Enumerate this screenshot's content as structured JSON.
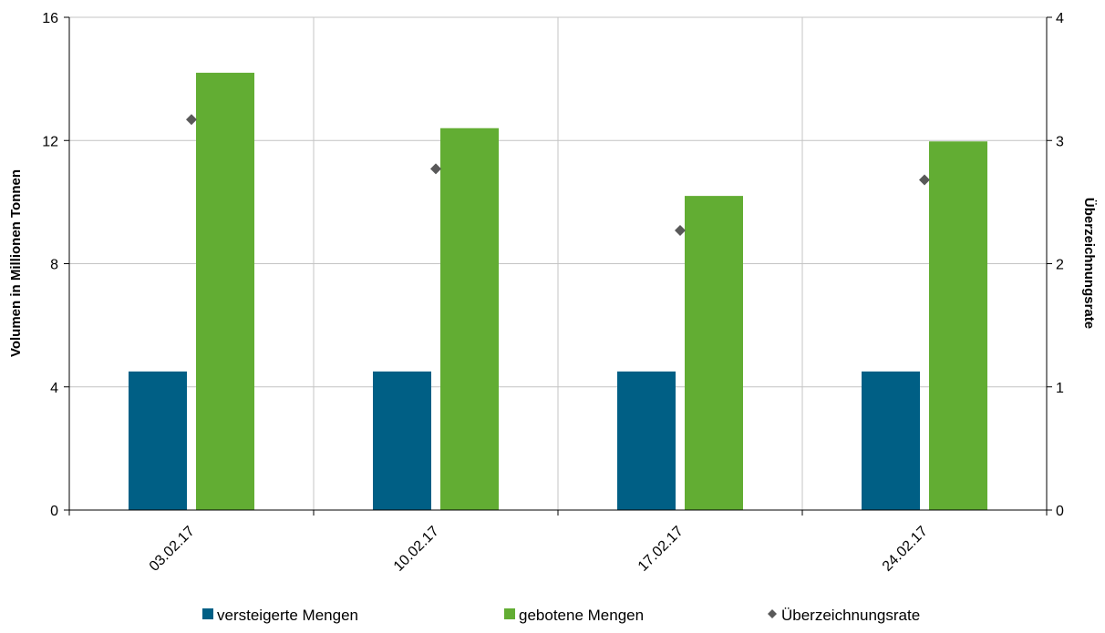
{
  "chart_data": {
    "type": "bar",
    "categories": [
      "03.02.17",
      "10.02.17",
      "17.02.17",
      "24.02.17"
    ],
    "series": [
      {
        "name": "versteigerte Mengen",
        "type": "bar",
        "axis": "left",
        "color": "#005f85",
        "values": [
          4.5,
          4.5,
          4.5,
          4.5
        ]
      },
      {
        "name": "gebotene Mengen",
        "type": "bar",
        "axis": "left",
        "color": "#62ad33",
        "values": [
          14.2,
          12.4,
          10.2,
          11.97
        ]
      },
      {
        "name": "Überzeichnungsrate",
        "type": "scatter",
        "axis": "right",
        "color": "#595959",
        "values": [
          3.17,
          2.77,
          2.27,
          2.68
        ]
      }
    ],
    "ylabel": "Volumen in Millionen Tonnen",
    "y2label": "Überzeichnungsrate",
    "ylim": [
      0,
      16
    ],
    "y2lim": [
      0,
      4
    ],
    "yticks": [
      "0",
      "4",
      "8",
      "12",
      "16"
    ],
    "y2ticks": [
      "0",
      "1",
      "2",
      "3",
      "4"
    ],
    "grid": true,
    "legend": "bottom"
  }
}
